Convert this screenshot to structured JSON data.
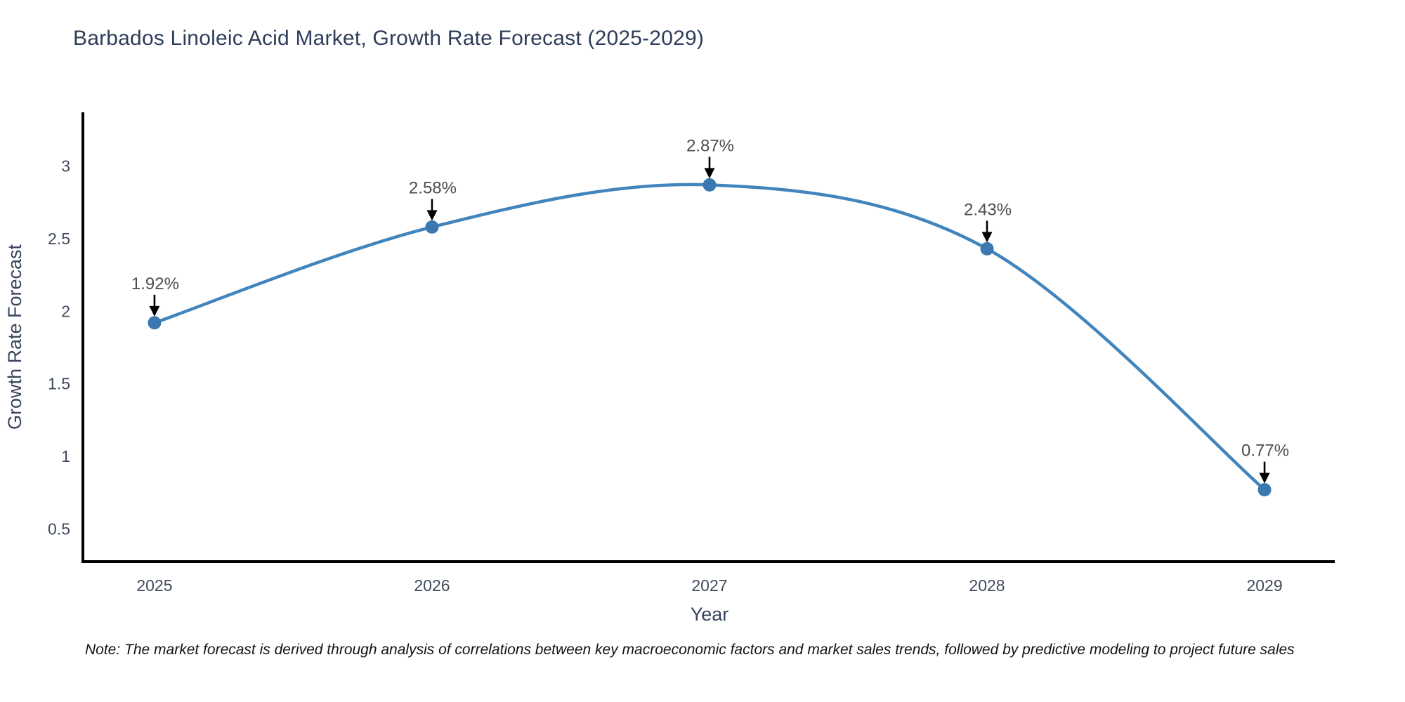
{
  "title": "Barbados Linoleic Acid Market, Growth Rate Forecast (2025-2029)",
  "note": "Note: The market forecast is derived through analysis of correlations between key macroeconomic factors and market sales trends, followed by predictive modeling to project future sales",
  "chart_data": {
    "type": "line",
    "title": "Barbados Linoleic Acid Market, Growth Rate Forecast (2025-2029)",
    "xlabel": "Year",
    "ylabel": "Growth Rate Forecast",
    "categories": [
      "2025",
      "2026",
      "2027",
      "2028",
      "2029"
    ],
    "values": [
      1.92,
      2.58,
      2.87,
      2.43,
      0.77
    ],
    "point_labels": [
      "1.92%",
      "2.58%",
      "2.87%",
      "2.43%",
      "0.77%"
    ],
    "y_ticks": [
      3,
      2.5,
      2,
      1.5,
      1,
      0.5
    ],
    "y_tick_labels": [
      "3",
      "2.5",
      "2",
      "1.5",
      "1",
      "0.5"
    ],
    "ylim": [
      0.275,
      3.37
    ],
    "x_index_lim": [
      -0.258,
      4.253
    ],
    "line_smoothing": "spline",
    "grid": false,
    "legend": "none",
    "colors": {
      "line": "#4285bd",
      "marker": "#3c78b0",
      "axis": "#000000",
      "title_text": "#2e3d59",
      "tick_text": "#3f4a5a",
      "annotation_text": "#4d4d4d",
      "annotation_arrow": "#000000",
      "note_text": "#141414",
      "background": "#ffffff"
    }
  }
}
